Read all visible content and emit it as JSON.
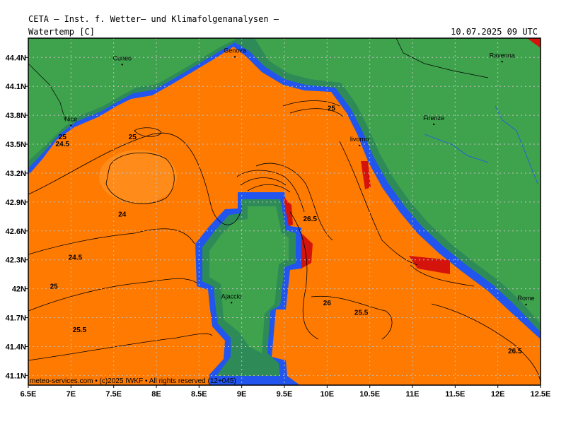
{
  "header": {
    "title": "CETA – Inst. f. Wetter– und Klimafolgenanalysen –",
    "field": "Watertemp [C]",
    "datetime": "10.07.2025 09 UTC"
  },
  "footer": {
    "credit": "meteo-services.com • (c)2025 IWKF • All rights reserved (12+045)"
  },
  "colors": {
    "land": "#3fa34d",
    "coast_band": "#2e8b57",
    "cold_coast": "#2255ee",
    "sea_warm": "#ff7a00",
    "sea_cool": "#ff8c1a",
    "hot": "#d4140c",
    "contour": "#000000",
    "grid": "#c0c0c0"
  },
  "map": {
    "lon_range": [
      6.5,
      12.5
    ],
    "lat_range": [
      41.0,
      44.6
    ],
    "lon_ticks": [
      {
        "value": 6.5,
        "label": "6.5E"
      },
      {
        "value": 7,
        "label": "7E"
      },
      {
        "value": 7.5,
        "label": "7.5E"
      },
      {
        "value": 8,
        "label": "8E"
      },
      {
        "value": 8.5,
        "label": "8.5E"
      },
      {
        "value": 9,
        "label": "9E"
      },
      {
        "value": 9.5,
        "label": "9.5E"
      },
      {
        "value": 10,
        "label": "10E"
      },
      {
        "value": 10.5,
        "label": "10.5E"
      },
      {
        "value": 11,
        "label": "11E"
      },
      {
        "value": 11.5,
        "label": "11.5E"
      },
      {
        "value": 12,
        "label": "12E"
      },
      {
        "value": 12.5,
        "label": "12.5E"
      }
    ],
    "lat_ticks": [
      {
        "value": 41.1,
        "label": "41.1N"
      },
      {
        "value": 41.4,
        "label": "41.4N"
      },
      {
        "value": 41.7,
        "label": "41.7N"
      },
      {
        "value": 42.0,
        "label": "42N"
      },
      {
        "value": 42.3,
        "label": "42.3N"
      },
      {
        "value": 42.6,
        "label": "42.6N"
      },
      {
        "value": 42.9,
        "label": "42.9N"
      },
      {
        "value": 43.2,
        "label": "43.2N"
      },
      {
        "value": 43.5,
        "label": "43.5N"
      },
      {
        "value": 43.8,
        "label": "43.8N"
      },
      {
        "value": 44.1,
        "label": "44.1N"
      },
      {
        "value": 44.4,
        "label": "44.4N"
      }
    ],
    "cities": [
      {
        "name": "Cuneo",
        "lon": 7.6,
        "lat": 44.37
      },
      {
        "name": "Genova",
        "lon": 8.92,
        "lat": 44.45
      },
      {
        "name": "Ravenna",
        "lon": 12.05,
        "lat": 44.4
      },
      {
        "name": "Nice",
        "lon": 7.0,
        "lat": 43.74
      },
      {
        "name": "Firenze",
        "lon": 11.25,
        "lat": 43.75
      },
      {
        "name": "livorno",
        "lon": 10.38,
        "lat": 43.53
      },
      {
        "name": "Ajaccio",
        "lon": 8.88,
        "lat": 41.9
      },
      {
        "name": "Rome",
        "lon": 12.33,
        "lat": 41.88
      }
    ],
    "contour_labels": [
      {
        "text": "25",
        "lon": 10.05,
        "lat": 43.85
      },
      {
        "text": "25",
        "lon": 7.72,
        "lat": 43.55
      },
      {
        "text": "25",
        "lon": 6.9,
        "lat": 43.55
      },
      {
        "text": "24.5",
        "lon": 6.9,
        "lat": 43.48
      },
      {
        "text": "24",
        "lon": 7.6,
        "lat": 42.75
      },
      {
        "text": "24.5",
        "lon": 7.05,
        "lat": 42.3
      },
      {
        "text": "25",
        "lon": 6.8,
        "lat": 42.0
      },
      {
        "text": "25.5",
        "lon": 7.1,
        "lat": 41.55
      },
      {
        "text": "26.5",
        "lon": 9.8,
        "lat": 42.7
      },
      {
        "text": "26",
        "lon": 10.0,
        "lat": 41.83
      },
      {
        "text": "25.5",
        "lon": 10.4,
        "lat": 41.73
      },
      {
        "text": "26.5",
        "lon": 12.2,
        "lat": 41.33
      }
    ]
  }
}
